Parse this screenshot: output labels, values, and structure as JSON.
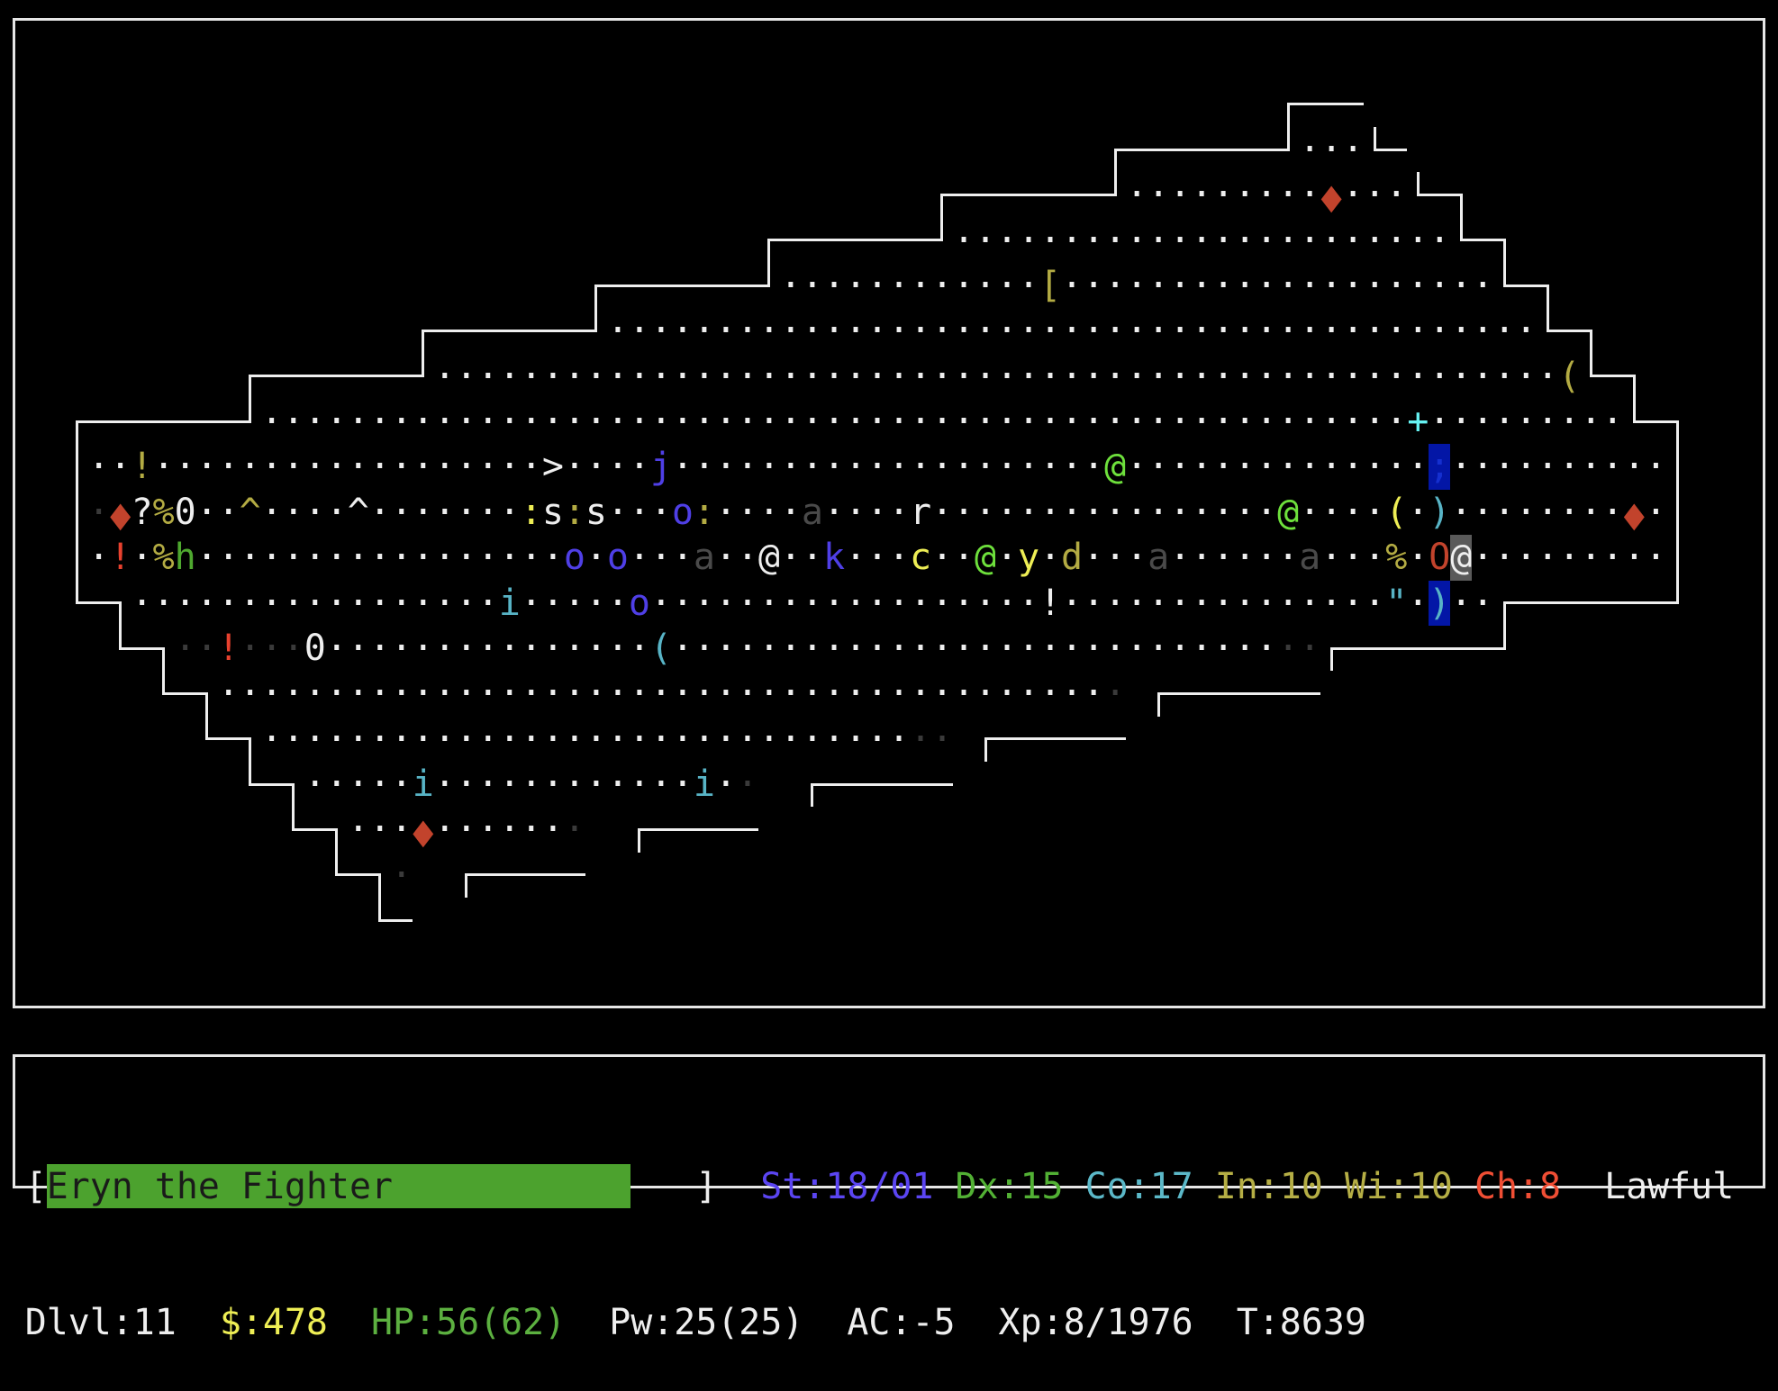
{
  "palette": {
    "w": {
      "fg": "#eeeeee"
    },
    "d": {
      "fg": "#3a3a3a"
    },
    "g": {
      "fg": "#4a4a4a"
    },
    "o": {
      "fg": "#b3ab43"
    },
    "y": {
      "fg": "#eeee55"
    },
    "b": {
      "fg": "#4f3fe6"
    },
    "G": {
      "fg": "#6ee03c"
    },
    "h": {
      "fg": "#4ea82f"
    },
    "c": {
      "fg": "#58b4c6"
    },
    "C": {
      "fg": "#66f2f2"
    },
    "r": {
      "fg": "#e8412e"
    },
    "R": {
      "fg": "#c2432c"
    },
    "B": {
      "fg": "#1530d0",
      "bg": "#0316a6"
    },
    "k": {
      "fg": "#58b4c6",
      "bg": "#0316a6"
    },
    "P": {
      "fg": "#eeeeee",
      "bg": "#5a5a5a"
    }
  },
  "map": {
    "rows": [
      [
        [
          "        ",
          ""
        ],
        [
          "        ",
          ""
        ],
        [
          "        ",
          ""
        ],
        [
          "        ",
          ""
        ],
        [
          "        ",
          ""
        ],
        [
          "        ",
          ""
        ],
        [
          "        ",
          ""
        ],
        [
          "┌───",
          ""
        ]
      ],
      [
        [
          "        ",
          ""
        ],
        [
          "        ",
          ""
        ],
        [
          "        ",
          ""
        ],
        [
          "        ",
          ""
        ],
        [
          "        ",
          ""
        ],
        [
          "        ",
          ""
        ],
        [
          "┌───────┘",
          ""
        ],
        [
          "···",
          ""
        ],
        [
          "└─",
          ""
        ]
      ],
      [
        [
          "        ",
          ""
        ],
        [
          "        ",
          ""
        ],
        [
          "        ",
          ""
        ],
        [
          "        ",
          ""
        ],
        [
          "        ",
          ""
        ],
        [
          "┌───────┘",
          ""
        ],
        [
          "·········",
          ""
        ],
        [
          "◆",
          "R"
        ],
        [
          "···",
          ""
        ],
        [
          "└─┐",
          ""
        ]
      ],
      [
        [
          "        ",
          ""
        ],
        [
          "        ",
          ""
        ],
        [
          "        ",
          ""
        ],
        [
          "        ",
          ""
        ],
        [
          "┌───────┘",
          ""
        ],
        [
          "··········",
          ""
        ],
        [
          "··········",
          ""
        ],
        [
          "···",
          ""
        ],
        [
          "└─┐",
          ""
        ]
      ],
      [
        [
          "        ",
          ""
        ],
        [
          "        ",
          ""
        ],
        [
          "        ",
          ""
        ],
        [
          "┌───────┘",
          ""
        ],
        [
          "··········",
          ""
        ],
        [
          "··",
          ""
        ],
        [
          "[",
          "o"
        ],
        [
          "··········",
          ""
        ],
        [
          "··········",
          ""
        ],
        [
          "└─┐",
          ""
        ]
      ],
      [
        [
          "        ",
          ""
        ],
        [
          "        ",
          ""
        ],
        [
          "┌───────┘",
          ""
        ],
        [
          "··········",
          ""
        ],
        [
          "··········",
          ""
        ],
        [
          "··········",
          ""
        ],
        [
          "··········",
          ""
        ],
        [
          "···",
          ""
        ],
        [
          "└─┐",
          ""
        ]
      ],
      [
        [
          "        ",
          ""
        ],
        [
          "┌───────┘",
          ""
        ],
        [
          "··········",
          ""
        ],
        [
          "··········",
          ""
        ],
        [
          "··········",
          ""
        ],
        [
          "··········",
          ""
        ],
        [
          "··········",
          ""
        ],
        [
          "··",
          ""
        ],
        [
          "(",
          "o"
        ],
        [
          "└─┐",
          ""
        ]
      ],
      [
        [
          "┌───────┘",
          ""
        ],
        [
          "··········",
          ""
        ],
        [
          "··········",
          ""
        ],
        [
          "··········",
          ""
        ],
        [
          "··········",
          ""
        ],
        [
          "··········",
          ""
        ],
        [
          "···",
          ""
        ],
        [
          "+",
          "C"
        ],
        [
          "·········",
          ""
        ],
        [
          "└─┐",
          ""
        ]
      ],
      [
        [
          "│",
          ""
        ],
        [
          "··",
          ""
        ],
        [
          "!",
          "o"
        ],
        [
          "··········",
          ""
        ],
        [
          "········",
          ""
        ],
        [
          ">",
          ""
        ],
        [
          "····",
          ""
        ],
        [
          "j",
          "b"
        ],
        [
          "··········",
          ""
        ],
        [
          "··········",
          ""
        ],
        [
          "@",
          "G"
        ],
        [
          "··········",
          ""
        ],
        [
          "····",
          ""
        ],
        [
          ";",
          "B"
        ],
        [
          "··········",
          ""
        ],
        [
          "│",
          ""
        ]
      ],
      [
        [
          "│",
          ""
        ],
        [
          "·",
          "d"
        ],
        [
          "◆",
          "R"
        ],
        [
          "?",
          ""
        ],
        [
          "%",
          "o"
        ],
        [
          "0",
          ""
        ],
        [
          "··",
          ""
        ],
        [
          "^",
          "o"
        ],
        [
          "····",
          ""
        ],
        [
          "^",
          ""
        ],
        [
          "·······",
          ""
        ],
        [
          ":",
          "y"
        ],
        [
          "s",
          ""
        ],
        [
          ":",
          "o"
        ],
        [
          "s",
          ""
        ],
        [
          "···",
          ""
        ],
        [
          "o",
          "b"
        ],
        [
          ":",
          "o"
        ],
        [
          "····",
          ""
        ],
        [
          "a",
          "g"
        ],
        [
          "····",
          ""
        ],
        [
          "r",
          ""
        ],
        [
          "··········",
          ""
        ],
        [
          "······",
          ""
        ],
        [
          "@",
          "G"
        ],
        [
          "····",
          ""
        ],
        [
          "(",
          "y"
        ],
        [
          "·",
          ""
        ],
        [
          ")",
          "c"
        ],
        [
          "········",
          ""
        ],
        [
          "◆",
          "R"
        ],
        [
          "·",
          ""
        ],
        [
          "│",
          ""
        ]
      ],
      [
        [
          "│",
          ""
        ],
        [
          "·",
          ""
        ],
        [
          "!",
          "r"
        ],
        [
          "·",
          ""
        ],
        [
          "%",
          "o"
        ],
        [
          "h",
          "h"
        ],
        [
          "··········",
          ""
        ],
        [
          "·······",
          ""
        ],
        [
          "o",
          "b"
        ],
        [
          "·",
          ""
        ],
        [
          "o",
          "b"
        ],
        [
          "···",
          ""
        ],
        [
          "a",
          "g"
        ],
        [
          "··",
          ""
        ],
        [
          "@",
          ""
        ],
        [
          "··",
          ""
        ],
        [
          "k",
          "b"
        ],
        [
          "···",
          ""
        ],
        [
          "c",
          "y"
        ],
        [
          "··",
          ""
        ],
        [
          "@",
          "G"
        ],
        [
          "·",
          ""
        ],
        [
          "y",
          "y"
        ],
        [
          "·",
          ""
        ],
        [
          "d",
          "o"
        ],
        [
          "···",
          ""
        ],
        [
          "a",
          "g"
        ],
        [
          "······",
          ""
        ],
        [
          "a",
          "g"
        ],
        [
          "···",
          ""
        ],
        [
          "%",
          "o"
        ],
        [
          "·",
          ""
        ],
        [
          "O",
          "R"
        ],
        [
          "@",
          "P"
        ],
        [
          "·········",
          ""
        ],
        [
          "│",
          ""
        ]
      ],
      [
        [
          "└─┐",
          ""
        ],
        [
          "··········",
          ""
        ],
        [
          "·······",
          ""
        ],
        [
          "i",
          "c"
        ],
        [
          "·····",
          ""
        ],
        [
          "o",
          "b"
        ],
        [
          "··········",
          ""
        ],
        [
          "········",
          ""
        ],
        [
          "!",
          ""
        ],
        [
          "··········",
          ""
        ],
        [
          "·····",
          ""
        ],
        [
          "\"",
          "c"
        ],
        [
          "·",
          ""
        ],
        [
          ")",
          "k"
        ],
        [
          "··",
          ""
        ],
        [
          "┌───────┘",
          ""
        ]
      ],
      [
        [
          "  ",
          ""
        ],
        [
          "└─┐",
          ""
        ],
        [
          "··",
          "d"
        ],
        [
          "!",
          "r"
        ],
        [
          "···",
          "d"
        ],
        [
          "0",
          ""
        ],
        [
          "··········",
          ""
        ],
        [
          "·····",
          ""
        ],
        [
          "(",
          "c"
        ],
        [
          "··········",
          ""
        ],
        [
          "··········",
          ""
        ],
        [
          "········",
          ""
        ],
        [
          "··",
          "d"
        ],
        [
          "┌───────┘",
          ""
        ]
      ],
      [
        [
          "    ",
          ""
        ],
        [
          "└─┐",
          ""
        ],
        [
          "··········",
          ""
        ],
        [
          "··········",
          ""
        ],
        [
          "··········",
          ""
        ],
        [
          "··········",
          ""
        ],
        [
          "·",
          ""
        ],
        [
          "·",
          "d"
        ],
        [
          " ",
          ""
        ],
        [
          "┌───────",
          ""
        ]
      ],
      [
        [
          "      ",
          ""
        ],
        [
          "└─┐",
          ""
        ],
        [
          "··········",
          ""
        ],
        [
          "··········",
          ""
        ],
        [
          "··········",
          ""
        ],
        [
          "··",
          "d"
        ],
        [
          " ",
          ""
        ],
        [
          "┌──────",
          ""
        ]
      ],
      [
        [
          "        ",
          ""
        ],
        [
          "└─┐",
          ""
        ],
        [
          "·····",
          ""
        ],
        [
          "i",
          "c"
        ],
        [
          "··········",
          ""
        ],
        [
          "··",
          ""
        ],
        [
          "i",
          "c"
        ],
        [
          "·",
          ""
        ],
        [
          "·",
          "d"
        ],
        [
          "  ",
          ""
        ],
        [
          "┌──────",
          ""
        ]
      ],
      [
        [
          "        ",
          ""
        ],
        [
          "  ",
          ""
        ],
        [
          "└─┐",
          ""
        ],
        [
          "···",
          ""
        ],
        [
          "◆",
          "R"
        ],
        [
          "······",
          ""
        ],
        [
          "·",
          "d"
        ],
        [
          "  ",
          ""
        ],
        [
          "┌─────",
          ""
        ]
      ],
      [
        [
          "        ",
          ""
        ],
        [
          "    ",
          ""
        ],
        [
          "└─┐",
          ""
        ],
        [
          "·",
          "d"
        ],
        [
          "  ",
          ""
        ],
        [
          "┌─────",
          ""
        ]
      ],
      [
        [
          "        ",
          ""
        ],
        [
          "      ",
          ""
        ],
        [
          "└─",
          ""
        ]
      ]
    ]
  },
  "status": {
    "line1": {
      "open_bracket": "[",
      "name": "Eryn the Fighter",
      "hp_bar_fill": 0.9,
      "hp_bar_color": "#4ca22e",
      "close_bracket": "]",
      "st": {
        "text": "St:18/01",
        "color": "#5b45f2"
      },
      "dx": {
        "text": "Dx:15",
        "color": "#52b034"
      },
      "co": {
        "text": "Co:17",
        "color": "#5bb8c8"
      },
      "in": {
        "text": "In:10",
        "color": "#b5ae45"
      },
      "wi": {
        "text": "Wi:10",
        "color": "#b5ae45"
      },
      "ch": {
        "text": "Ch:8",
        "color": "#f04e34"
      },
      "alignment": {
        "text": "Lawful",
        "color": "#eeeeee"
      }
    },
    "line2": {
      "dlvl": {
        "text": "Dlvl:11",
        "color": "#eeeeee"
      },
      "gold": {
        "text": "$:478",
        "color": "#eeee55"
      },
      "hp": {
        "text": "HP:56(62)",
        "color": "#5cb040"
      },
      "pw": {
        "text": "Pw:25(25)",
        "color": "#eeeeee"
      },
      "ac": {
        "text": "AC:-5",
        "color": "#eeeeee"
      },
      "xp": {
        "text": "Xp:8/1976",
        "color": "#eeeeee"
      },
      "turn": {
        "text": "T:8639",
        "color": "#eeeeee"
      }
    }
  }
}
